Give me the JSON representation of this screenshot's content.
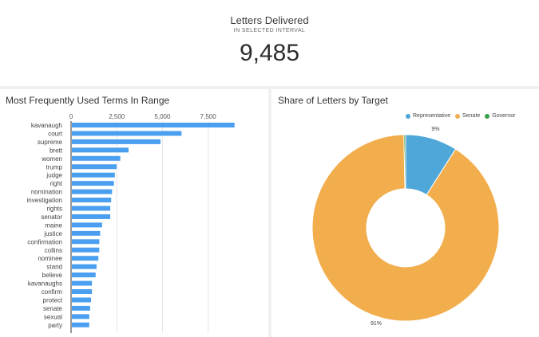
{
  "kpi": {
    "title": "Letters Delivered",
    "subtitle": "IN SELECTED INTERVAL",
    "value": "9,485"
  },
  "terms_panel": {
    "title": "Most Frequently Used Terms In Range"
  },
  "target_panel": {
    "title": "Share of Letters by Target"
  },
  "colors": {
    "bar": "#4a9ff0",
    "representative": "#4fa6d8",
    "senate": "#f2ae4d",
    "governor": "#3aa04a"
  },
  "chart_data": [
    {
      "type": "bar",
      "orientation": "horizontal",
      "title": "Most Frequently Used Terms In Range",
      "xlim": [
        0,
        9000
      ],
      "ticks": [
        "0",
        "2,500",
        "5,000",
        "7,500"
      ],
      "tick_values": [
        0,
        2500,
        5000,
        7500
      ],
      "grid": true,
      "categories": [
        "kavanaugh",
        "court",
        "supreme",
        "brett",
        "women",
        "trump",
        "judge",
        "right",
        "nomination",
        "investigation",
        "rights",
        "senator",
        "maine",
        "justice",
        "confirmation",
        "collins",
        "nominee",
        "stand",
        "believe",
        "kavanaughs",
        "confirm",
        "protect",
        "senate",
        "sexual",
        "party"
      ],
      "values": [
        8900,
        6000,
        4850,
        3100,
        2650,
        2450,
        2350,
        2300,
        2200,
        2150,
        2100,
        2100,
        1650,
        1550,
        1500,
        1500,
        1450,
        1350,
        1300,
        1100,
        1100,
        1050,
        1000,
        950,
        950
      ]
    },
    {
      "type": "pie",
      "donut": true,
      "title": "Share of Letters by Target",
      "legend": "top-right",
      "series": [
        {
          "name": "Representative",
          "value": 9,
          "label": "9%"
        },
        {
          "name": "Senate",
          "value": 91,
          "label": "91%"
        },
        {
          "name": "Governor",
          "value": 0.3,
          "label": ""
        }
      ]
    }
  ]
}
